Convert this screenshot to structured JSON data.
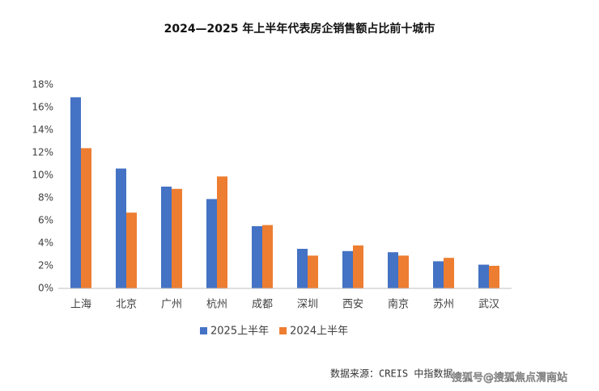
{
  "chart_data": {
    "type": "bar",
    "title": "2024—2025 年上半年代表房企销售额占比前十城市",
    "categories": [
      "上海",
      "北京",
      "广州",
      "杭州",
      "成都",
      "深圳",
      "西安",
      "南京",
      "苏州",
      "武汉"
    ],
    "series": [
      {
        "name": "2025上半年",
        "color": "#4472c4",
        "values": [
          16.9,
          10.6,
          9.0,
          7.9,
          5.5,
          3.5,
          3.3,
          3.2,
          2.4,
          2.1
        ]
      },
      {
        "name": "2024上半年",
        "color": "#ed7d31",
        "values": [
          12.4,
          6.7,
          8.8,
          9.9,
          5.6,
          2.9,
          3.8,
          2.9,
          2.7,
          2.0
        ]
      }
    ],
    "ylim": [
      0,
      18
    ],
    "yticks": [
      {
        "value": 0,
        "label": "0%"
      },
      {
        "value": 2,
        "label": "2%"
      },
      {
        "value": 4,
        "label": "4%"
      },
      {
        "value": 6,
        "label": "6%"
      },
      {
        "value": 8,
        "label": "8%"
      },
      {
        "value": 10,
        "label": "10%"
      },
      {
        "value": 12,
        "label": "12%"
      },
      {
        "value": 14,
        "label": "14%"
      },
      {
        "value": 16,
        "label": "16%"
      },
      {
        "value": 18,
        "label": "18%"
      }
    ],
    "grid": false,
    "legend": "bottom",
    "source": "数据来源：CREIS 中指数据",
    "watermark": "搜狐号@搜狐焦点渭南站"
  }
}
